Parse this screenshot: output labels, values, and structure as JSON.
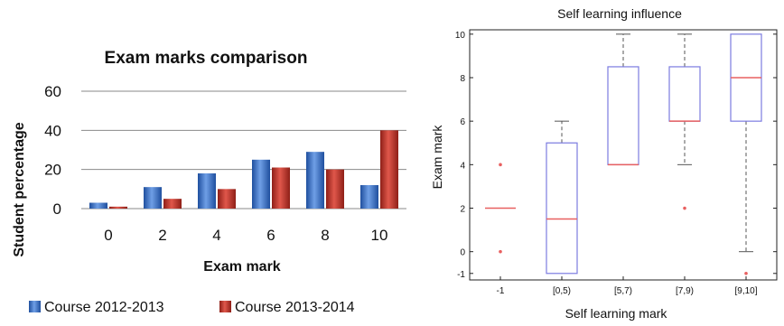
{
  "chart_data": [
    {
      "type": "bar",
      "title": "Exam marks comparison",
      "xlabel": "Exam mark",
      "ylabel": "Student percentage",
      "categories": [
        "0",
        "2",
        "4",
        "6",
        "8",
        "10"
      ],
      "yticks": [
        "0",
        "20",
        "40",
        "60"
      ],
      "ylim": [
        0,
        60
      ],
      "grid": true,
      "legend_position": "bottom",
      "series": [
        {
          "name": "Course 2012-2013",
          "color": "#3a6fc4",
          "values": [
            3,
            11,
            18,
            25,
            29,
            12
          ]
        },
        {
          "name": "Course 2013-2014",
          "color": "#c0392b",
          "values": [
            1,
            5,
            10,
            21,
            20,
            40
          ]
        }
      ]
    },
    {
      "type": "box",
      "title": "Self learning influence",
      "xlabel": "Self learning mark",
      "ylabel": "Exam mark",
      "categories": [
        "-1",
        "[0,5)",
        "[5,7)",
        "[7,9)",
        "[9,10]"
      ],
      "yticks": [
        "-1",
        "0",
        "2",
        "4",
        "6",
        "8",
        "10"
      ],
      "ylim": [
        -1.3,
        10.2
      ],
      "box_color": "#7b7be0",
      "median_color": "#e86060",
      "whisker_color": "#555555",
      "outlier_color": "#e86060",
      "boxes": [
        {
          "q1": 2,
          "median": 2,
          "q3": 2,
          "whisker_low": 2,
          "whisker_high": 2,
          "outliers": [
            0,
            4
          ]
        },
        {
          "q1": -1,
          "median": 1.5,
          "q3": 5,
          "whisker_low": -1,
          "whisker_high": 6,
          "outliers": []
        },
        {
          "q1": 4,
          "median": 4,
          "q3": 8.5,
          "whisker_low": 4,
          "whisker_high": 10,
          "outliers": []
        },
        {
          "q1": 6,
          "median": 6,
          "q3": 8.5,
          "whisker_low": 4,
          "whisker_high": 10,
          "outliers": [
            2
          ]
        },
        {
          "q1": 6,
          "median": 8,
          "q3": 10,
          "whisker_low": 0,
          "whisker_high": 10,
          "outliers": [
            -1
          ]
        }
      ]
    }
  ]
}
